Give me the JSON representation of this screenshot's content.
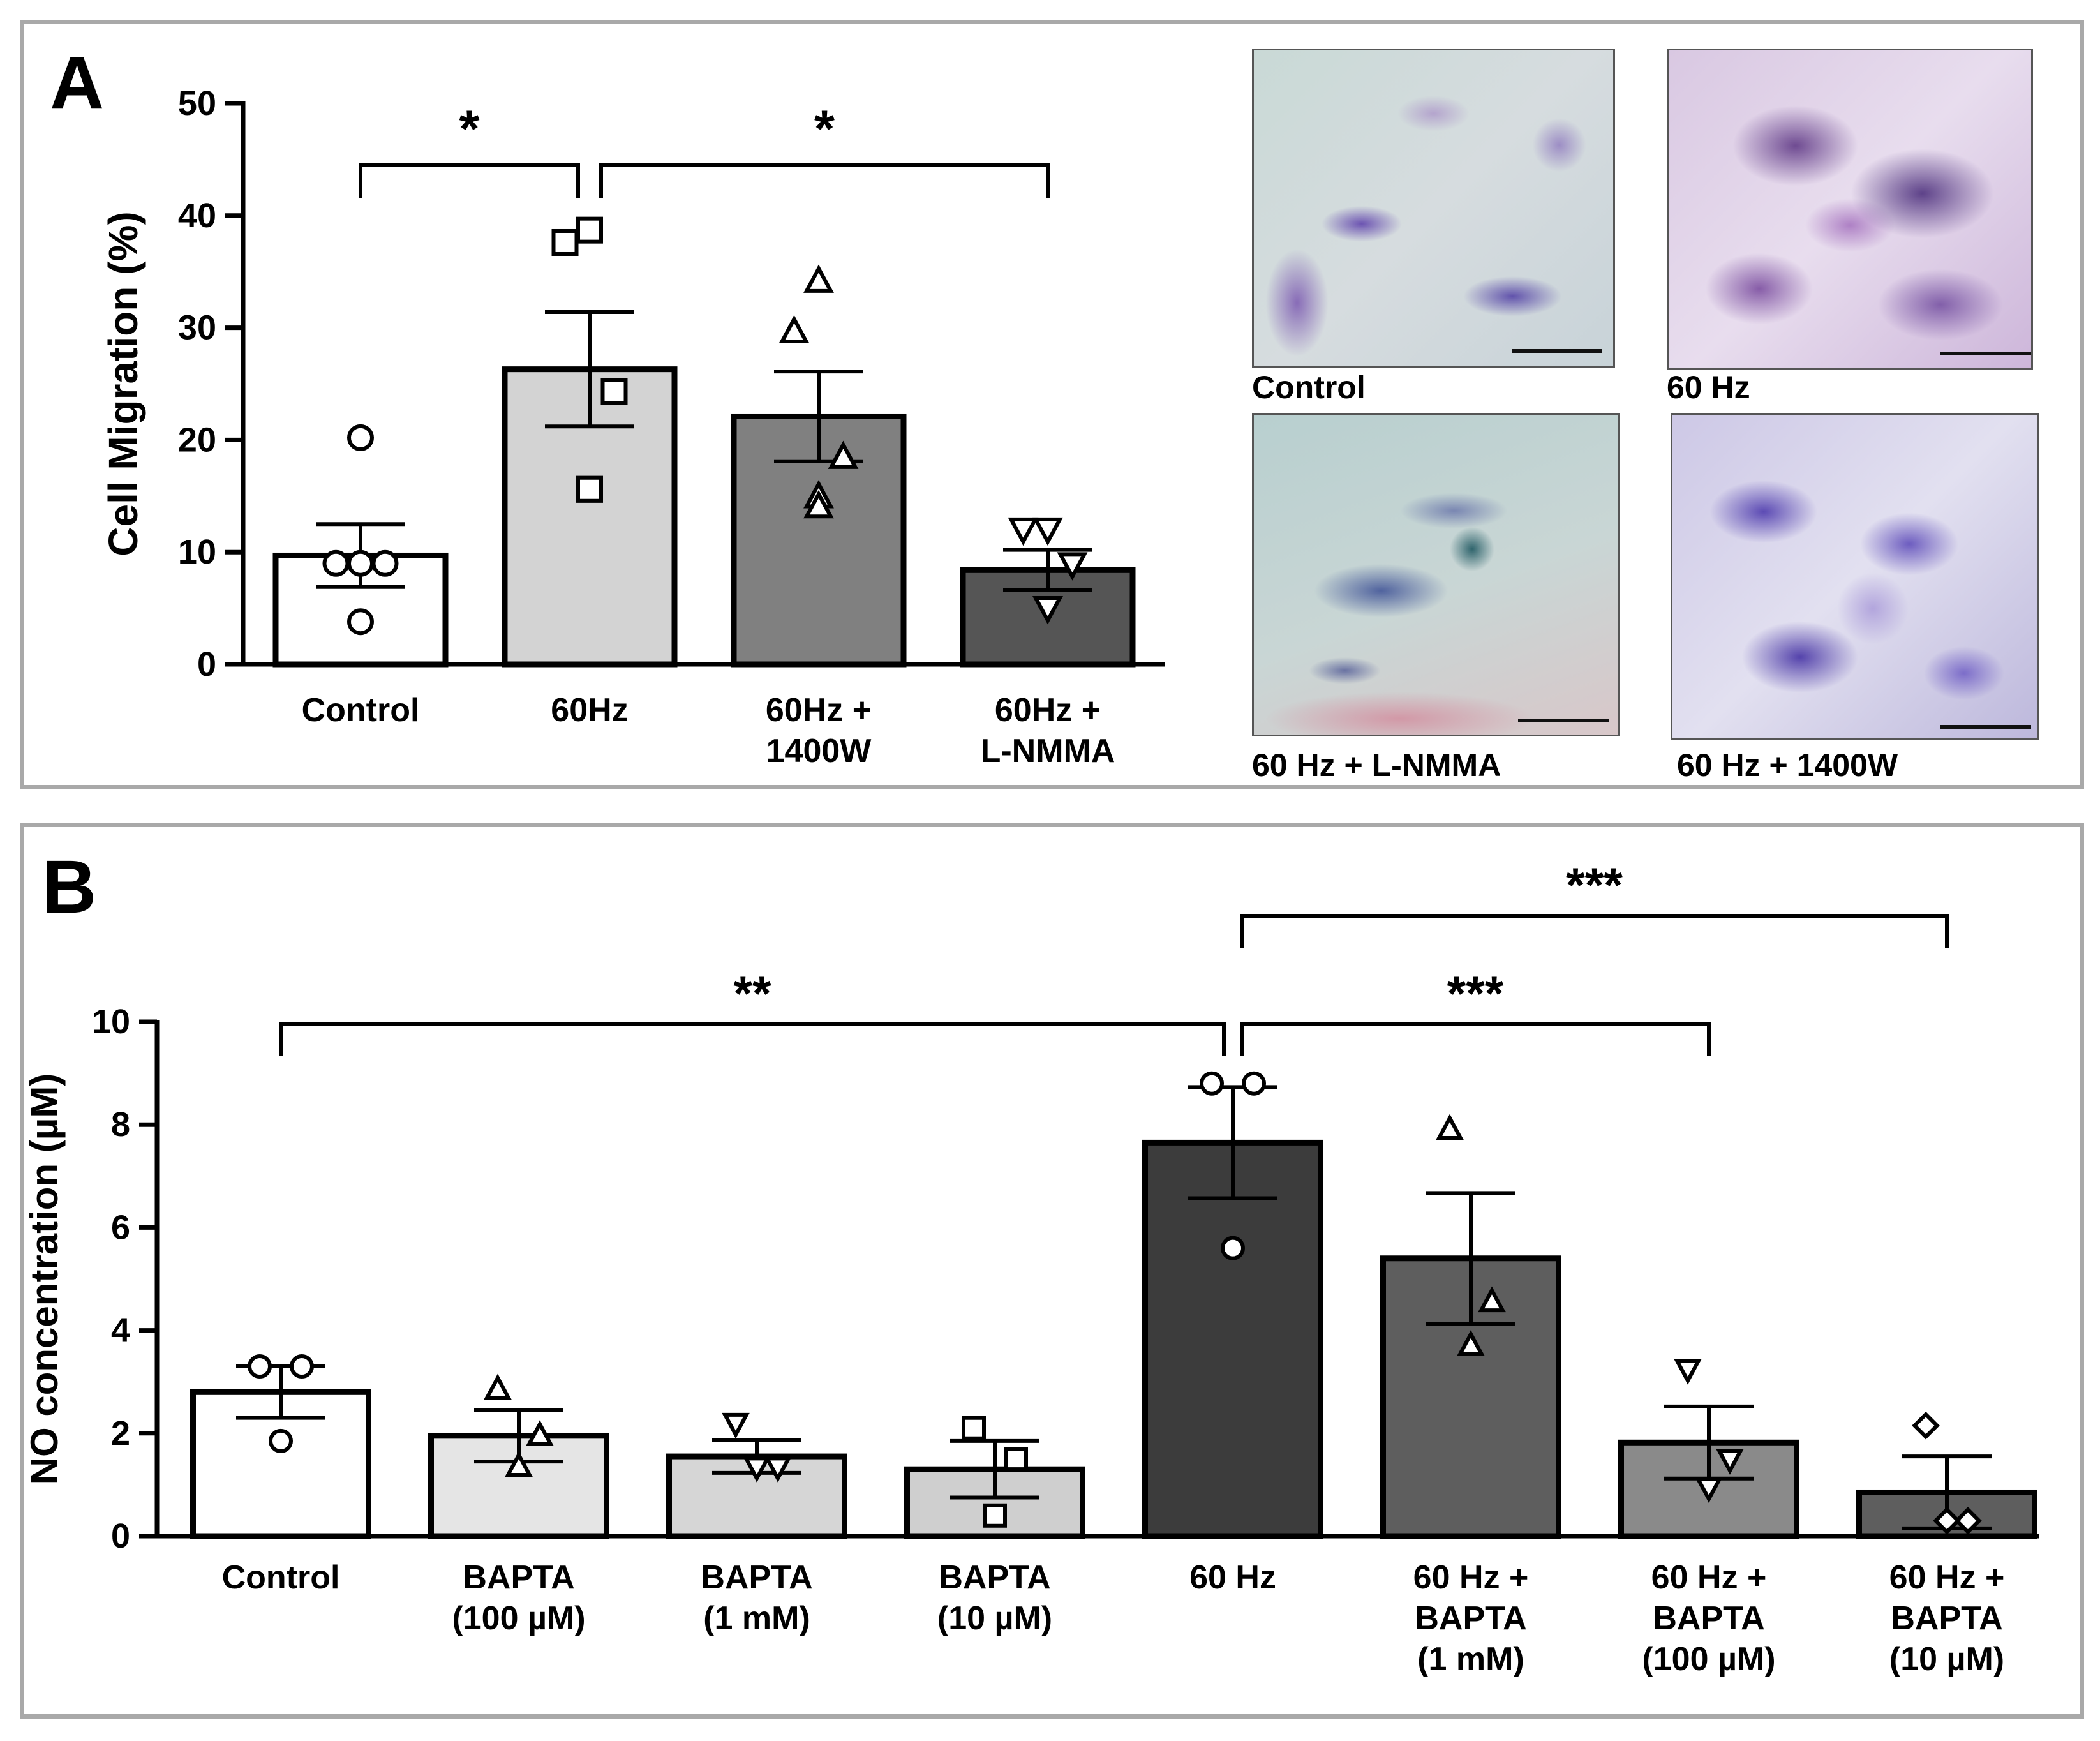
{
  "panel_letters": {
    "a": "A",
    "b": "B"
  },
  "chart_data": [
    {
      "id": "A",
      "type": "bar",
      "title": "",
      "xlabel": "",
      "ylabel": "Cell Migration (%)",
      "ylim": [
        0,
        50
      ],
      "yticks": [
        0,
        10,
        20,
        30,
        40,
        50
      ],
      "categories": [
        [
          "Control"
        ],
        [
          "60Hz"
        ],
        [
          "60Hz +",
          "1400W"
        ],
        [
          "60Hz +",
          "L-NMMA"
        ]
      ],
      "values": [
        9.7,
        26.3,
        22.1,
        8.4
      ],
      "sem": [
        2.8,
        5.1,
        4.0,
        1.8
      ],
      "bar_colors": [
        "#ffffff",
        "#d3d3d3",
        "#808080",
        "#555555"
      ],
      "markers": [
        "circle",
        "square",
        "triangle-up",
        "triangle-down"
      ],
      "points": [
        [
          20.2,
          9.0,
          9.0,
          9.0,
          3.8
        ],
        [
          38.7,
          37.6,
          24.3,
          15.6,
          15.6
        ],
        [
          34.1,
          29.6,
          18.4,
          14.9,
          14.0
        ],
        [
          12.1,
          12.1,
          9.0,
          5.1,
          5.1
        ]
      ],
      "significance": [
        {
          "from": 0,
          "to": 1,
          "label": "*"
        },
        {
          "from": 1,
          "to": 3,
          "label": "*"
        }
      ]
    },
    {
      "id": "B",
      "type": "bar",
      "title": "",
      "xlabel": "",
      "ylabel": "NO concentration (µM)",
      "ylim": [
        0,
        10
      ],
      "yticks": [
        0,
        2,
        4,
        6,
        8,
        10
      ],
      "categories": [
        [
          "Control"
        ],
        [
          "BAPTA",
          "(100 µM)"
        ],
        [
          "BAPTA",
          "(1 mM)"
        ],
        [
          "BAPTA",
          "(10 µM)"
        ],
        [
          "60 Hz"
        ],
        [
          "60 Hz +",
          "BAPTA",
          "(1 mM)"
        ],
        [
          "60 Hz +",
          "BAPTA",
          "(100 µM)"
        ],
        [
          "60 Hz +",
          "BAPTA",
          "(10 µM)"
        ]
      ],
      "values": [
        2.8,
        1.95,
        1.55,
        1.3,
        7.65,
        5.4,
        1.82,
        0.85
      ],
      "sem": [
        0.5,
        0.5,
        0.32,
        0.55,
        1.08,
        1.27,
        0.7,
        0.7
      ],
      "bar_colors": [
        "#ffffff",
        "#e5e5e5",
        "#d6d6d6",
        "#cfcfcf",
        "#3c3c3c",
        "#5e5e5e",
        "#8a8a8a",
        "#5e5e5e"
      ],
      "markers": [
        "circle",
        "triangle-up",
        "triangle-down",
        "square",
        "circle",
        "triangle-up",
        "triangle-down",
        "diamond"
      ],
      "points": [
        [
          3.3,
          3.3,
          1.85
        ],
        [
          2.85,
          1.95,
          1.35
        ],
        [
          2.2,
          1.35,
          1.35
        ],
        [
          2.1,
          1.5,
          0.4
        ],
        [
          8.8,
          8.8,
          5.6
        ],
        [
          7.9,
          4.55,
          3.7
        ],
        [
          3.25,
          1.5,
          0.95
        ],
        [
          2.15,
          0.3,
          0.3
        ]
      ],
      "significance": [
        {
          "from": 0,
          "to": 4,
          "label": "**",
          "level": 1
        },
        {
          "from": 4,
          "to": 6,
          "label": "***",
          "level": 1
        },
        {
          "from": 4,
          "to": 7,
          "label": "***",
          "level": 2
        }
      ]
    }
  ],
  "micrographs": [
    {
      "id": "control",
      "caption": "Control"
    },
    {
      "id": "60hz",
      "caption": "60 Hz"
    },
    {
      "id": "lnmma",
      "caption": "60 Hz + L-NMMA"
    },
    {
      "id": "1400w",
      "caption": "60 Hz + 1400W"
    }
  ]
}
